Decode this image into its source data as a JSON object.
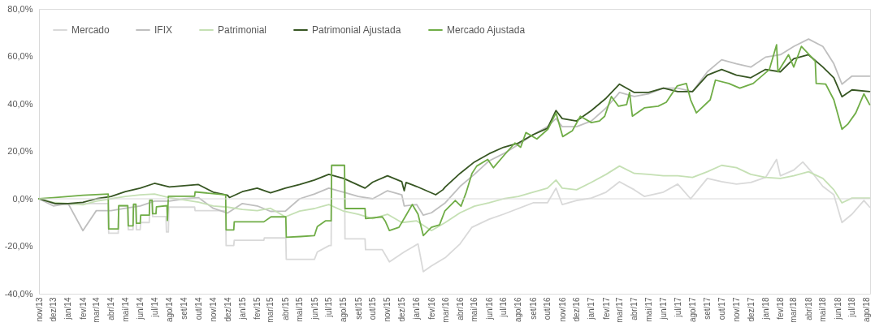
{
  "chart_data": {
    "type": "line",
    "legend": "top left",
    "marker": "none",
    "line_style": "solid",
    "grid": false,
    "xlim": [
      "2013-11-01",
      "2018-08-08"
    ],
    "xticks": [
      {
        "value": "2013-11-01",
        "label": "nov/13"
      },
      {
        "value": "2013-12-01",
        "label": "dez/13"
      },
      {
        "value": "2014-01-01",
        "label": "jan/14"
      },
      {
        "value": "2014-02-01",
        "label": "fev/14"
      },
      {
        "value": "2014-03-01",
        "label": "mar/14"
      },
      {
        "value": "2014-04-01",
        "label": "abr/14"
      },
      {
        "value": "2014-05-01",
        "label": "mai/14"
      },
      {
        "value": "2014-06-01",
        "label": "jun/14"
      },
      {
        "value": "2014-07-01",
        "label": "jul/14"
      },
      {
        "value": "2014-08-01",
        "label": "ago/14"
      },
      {
        "value": "2014-09-01",
        "label": "set/14"
      },
      {
        "value": "2014-10-01",
        "label": "out/14"
      },
      {
        "value": "2014-11-01",
        "label": "nov/14"
      },
      {
        "value": "2014-12-01",
        "label": "dez/14"
      },
      {
        "value": "2015-01-01",
        "label": "jan/15"
      },
      {
        "value": "2015-02-01",
        "label": "fev/15"
      },
      {
        "value": "2015-03-01",
        "label": "mar/15"
      },
      {
        "value": "2015-04-01",
        "label": "abr/15"
      },
      {
        "value": "2015-05-01",
        "label": "mai/15"
      },
      {
        "value": "2015-06-01",
        "label": "jun/15"
      },
      {
        "value": "2015-07-01",
        "label": "jul/15"
      },
      {
        "value": "2015-08-01",
        "label": "ago/15"
      },
      {
        "value": "2015-09-01",
        "label": "set/15"
      },
      {
        "value": "2015-10-01",
        "label": "out/15"
      },
      {
        "value": "2015-11-01",
        "label": "nov/15"
      },
      {
        "value": "2015-12-01",
        "label": "dez/15"
      },
      {
        "value": "2016-01-01",
        "label": "jan/16"
      },
      {
        "value": "2016-02-01",
        "label": "fev/16"
      },
      {
        "value": "2016-03-01",
        "label": "mar/16"
      },
      {
        "value": "2016-04-01",
        "label": "abr/16"
      },
      {
        "value": "2016-05-01",
        "label": "mai/16"
      },
      {
        "value": "2016-06-01",
        "label": "jun/16"
      },
      {
        "value": "2016-07-01",
        "label": "jul/16"
      },
      {
        "value": "2016-08-01",
        "label": "ago/16"
      },
      {
        "value": "2016-09-01",
        "label": "set/16"
      },
      {
        "value": "2016-10-01",
        "label": "out/16"
      },
      {
        "value": "2016-11-01",
        "label": "nov/16"
      },
      {
        "value": "2016-12-01",
        "label": "dez/16"
      },
      {
        "value": "2017-01-01",
        "label": "jan/17"
      },
      {
        "value": "2017-02-01",
        "label": "fev/17"
      },
      {
        "value": "2017-03-01",
        "label": "mar/17"
      },
      {
        "value": "2017-04-01",
        "label": "abr/17"
      },
      {
        "value": "2017-05-01",
        "label": "mai/17"
      },
      {
        "value": "2017-06-01",
        "label": "jun/17"
      },
      {
        "value": "2017-07-01",
        "label": "jul/17"
      },
      {
        "value": "2017-08-01",
        "label": "ago/17"
      },
      {
        "value": "2017-09-01",
        "label": "set/17"
      },
      {
        "value": "2017-10-01",
        "label": "out/17"
      },
      {
        "value": "2017-11-01",
        "label": "nov/17"
      },
      {
        "value": "2017-12-01",
        "label": "dez/17"
      },
      {
        "value": "2018-01-01",
        "label": "jan/18"
      },
      {
        "value": "2018-02-01",
        "label": "fev/18"
      },
      {
        "value": "2018-03-01",
        "label": "mar/18"
      },
      {
        "value": "2018-04-01",
        "label": "abr/18"
      },
      {
        "value": "2018-05-01",
        "label": "mai/18"
      },
      {
        "value": "2018-06-01",
        "label": "jun/18"
      },
      {
        "value": "2018-07-01",
        "label": "jul/18"
      },
      {
        "value": "2018-08-01",
        "label": "ago/18"
      }
    ],
    "ylim": [
      -40,
      80
    ],
    "yticks": [
      {
        "value": -40,
        "label": "-40,0%"
      },
      {
        "value": -20,
        "label": "-20,0%"
      },
      {
        "value": 0,
        "label": "0,0%"
      },
      {
        "value": 20,
        "label": "20,0%"
      },
      {
        "value": 40,
        "label": "40,0%"
      },
      {
        "value": 60,
        "label": "60,0%"
      },
      {
        "value": 80,
        "label": "80,0%"
      }
    ],
    "ref_lines": [
      {
        "axis": "y",
        "value": 0,
        "color": "#d9d9d9"
      }
    ],
    "series": [
      {
        "name": "Mercado",
        "color": "#d9d9d9",
        "x": [
          "2013-11-01",
          "2013-12-01",
          "2014-01-01",
          "2014-02-01",
          "2014-03-01",
          "2014-03-26",
          "2014-03-27",
          "2014-04-16",
          "2014-04-17",
          "2014-05-06",
          "2014-05-07",
          "2014-05-17",
          "2014-05-18",
          "2014-05-23",
          "2014-05-24",
          "2014-06-01",
          "2014-06-02",
          "2014-06-20",
          "2014-06-21",
          "2014-06-26",
          "2014-06-27",
          "2014-07-25",
          "2014-07-26",
          "2014-07-30",
          "2014-07-31",
          "2014-09-23",
          "2014-09-24",
          "2014-11-27",
          "2014-11-28",
          "2014-12-14",
          "2014-12-15",
          "2015-02-15",
          "2015-02-16",
          "2015-04-02",
          "2015-04-03",
          "2015-06-01",
          "2015-06-07",
          "2015-07-02",
          "2015-07-06",
          "2015-07-07",
          "2015-08-03",
          "2015-08-04",
          "2015-09-15",
          "2015-09-16",
          "2015-10-21",
          "2015-11-05",
          "2015-12-06",
          "2016-01-04",
          "2016-01-15",
          "2016-02-01",
          "2016-03-01",
          "2016-04-01",
          "2016-04-26",
          "2016-06-01",
          "2016-07-01",
          "2016-08-01",
          "2016-09-01",
          "2016-10-01",
          "2016-10-19",
          "2016-11-01",
          "2016-12-01",
          "2017-01-01",
          "2017-02-01",
          "2017-03-01",
          "2017-04-01",
          "2017-04-22",
          "2017-06-01",
          "2017-07-01",
          "2017-07-28",
          "2017-09-01",
          "2017-10-01",
          "2017-11-01",
          "2017-12-01",
          "2018-01-01",
          "2018-01-24",
          "2018-02-01",
          "2018-03-01",
          "2018-03-20",
          "2018-04-10",
          "2018-05-01",
          "2018-05-24",
          "2018-06-10",
          "2018-07-01",
          "2018-07-26",
          "2018-08-07"
        ],
        "values": [
          0,
          -2,
          -2.5,
          -2,
          -2,
          -2,
          -14.5,
          -14.5,
          -3,
          -3,
          -13,
          -13,
          -3,
          -3,
          -13,
          -13,
          -10,
          -10,
          -1,
          -1,
          -7.5,
          -7.5,
          -14,
          -14,
          -3.5,
          -3.5,
          -5,
          -5,
          -19.7,
          -19.7,
          -17.5,
          -17.5,
          -16.5,
          -16.5,
          -25.5,
          -25.5,
          -22.4,
          -19.7,
          -19.7,
          14.1,
          14.1,
          -16.9,
          -16.9,
          -21.4,
          -21.4,
          -26.6,
          -22.4,
          -19,
          -30.7,
          -28.3,
          -24.8,
          -19,
          -12,
          -8.6,
          -6.5,
          -4.1,
          -1.7,
          -1.7,
          4.5,
          -2.4,
          -0.7,
          0.3,
          2.8,
          7.2,
          3.8,
          1,
          2.8,
          6.2,
          0,
          8.6,
          7.2,
          6.2,
          6.9,
          9,
          16.6,
          9.7,
          12.1,
          15.5,
          10.7,
          5.2,
          1.7,
          -10,
          -6.5,
          -0.7,
          -3.5
        ]
      },
      {
        "name": "IFIX",
        "color": "#bfbfbf",
        "x": [
          "2013-11-01",
          "2013-12-01",
          "2014-01-01",
          "2014-02-01",
          "2014-03-01",
          "2014-04-01",
          "2014-05-01",
          "2014-06-01",
          "2014-07-01",
          "2014-08-01",
          "2014-09-01",
          "2014-10-01",
          "2014-11-01",
          "2014-12-01",
          "2015-01-01",
          "2015-02-01",
          "2015-03-01",
          "2015-04-01",
          "2015-05-01",
          "2015-06-01",
          "2015-07-01",
          "2015-08-01",
          "2015-09-01",
          "2015-10-01",
          "2015-11-01",
          "2015-12-01",
          "2015-12-06",
          "2016-01-01",
          "2016-01-15",
          "2016-02-01",
          "2016-03-01",
          "2016-04-01",
          "2016-05-01",
          "2016-06-01",
          "2016-07-01",
          "2016-08-01",
          "2016-09-01",
          "2016-10-01",
          "2016-10-19",
          "2016-11-01",
          "2016-12-01",
          "2017-01-01",
          "2017-02-01",
          "2017-03-01",
          "2017-04-01",
          "2017-05-01",
          "2017-06-01",
          "2017-07-01",
          "2017-08-01",
          "2017-09-01",
          "2017-10-01",
          "2017-11-01",
          "2017-12-01",
          "2018-01-01",
          "2018-02-01",
          "2018-03-01",
          "2018-04-01",
          "2018-05-01",
          "2018-05-24",
          "2018-06-10",
          "2018-07-01",
          "2018-08-07"
        ],
        "values": [
          0,
          -3,
          -2,
          -13.4,
          -5,
          -5,
          -4,
          -3,
          -1,
          -1,
          0,
          0.5,
          -4,
          -6,
          -2,
          -3,
          -5.3,
          -5.2,
          0,
          2,
          4.5,
          2.8,
          1,
          0,
          3.4,
          1.7,
          -3,
          -2.4,
          -6.9,
          -5.9,
          -1.7,
          5.2,
          10.3,
          16,
          19,
          22.8,
          27,
          30.4,
          33.8,
          30.4,
          30.4,
          32.8,
          38.3,
          44.8,
          43.1,
          44.2,
          46.6,
          46.6,
          45.2,
          53.5,
          58.6,
          56.9,
          55.5,
          59.7,
          60.7,
          64.2,
          67.3,
          64.2,
          56.9,
          48.3,
          51.7,
          51.7
        ]
      },
      {
        "name": "Patrimonial",
        "color": "#c5e0b4",
        "x": [
          "2013-11-01",
          "2013-12-01",
          "2014-01-01",
          "2014-02-01",
          "2014-03-01",
          "2014-04-01",
          "2014-05-01",
          "2014-06-01",
          "2014-07-01",
          "2014-08-01",
          "2014-09-01",
          "2014-10-01",
          "2014-11-01",
          "2014-12-01",
          "2015-01-01",
          "2015-02-01",
          "2015-03-01",
          "2015-04-01",
          "2015-05-01",
          "2015-06-01",
          "2015-07-01",
          "2015-08-01",
          "2015-09-01",
          "2015-10-01",
          "2015-11-01",
          "2015-12-01",
          "2016-01-01",
          "2016-02-01",
          "2016-03-01",
          "2016-04-01",
          "2016-05-01",
          "2016-06-01",
          "2016-07-01",
          "2016-08-01",
          "2016-09-01",
          "2016-10-01",
          "2016-10-19",
          "2016-11-01",
          "2016-12-01",
          "2017-01-01",
          "2017-02-01",
          "2017-03-01",
          "2017-04-01",
          "2017-05-01",
          "2017-06-01",
          "2017-07-01",
          "2017-08-01",
          "2017-09-01",
          "2017-10-01",
          "2017-11-01",
          "2017-12-01",
          "2018-01-01",
          "2018-02-01",
          "2018-03-01",
          "2018-04-01",
          "2018-05-01",
          "2018-05-24",
          "2018-06-10",
          "2018-07-01",
          "2018-08-07"
        ],
        "values": [
          0,
          -1.5,
          -2,
          -2.5,
          -1,
          0,
          1,
          1.7,
          2,
          0.5,
          -0.5,
          -1.4,
          -3,
          -3.5,
          -4.5,
          -5,
          -4,
          -7.6,
          -5.2,
          -4.1,
          -2.4,
          -5.2,
          -6.5,
          -8.3,
          -6.5,
          -10,
          -9.3,
          -13.4,
          -10,
          -5.9,
          -3.1,
          -1.7,
          0,
          1,
          2.8,
          4.5,
          7.9,
          4.5,
          3.8,
          6.9,
          10.3,
          13.8,
          10.7,
          10.3,
          9.7,
          9.7,
          9,
          11.4,
          14.1,
          13.1,
          10.3,
          9,
          8.6,
          9.7,
          11.4,
          8.6,
          3.8,
          -1.7,
          0.3,
          0.3
        ]
      },
      {
        "name": "Patrimonial Ajustada",
        "color": "#375623",
        "x": [
          "2013-11-01",
          "2013-12-05",
          "2014-01-01",
          "2014-02-01",
          "2014-03-01",
          "2014-04-01",
          "2014-05-01",
          "2014-06-01",
          "2014-07-01",
          "2014-08-01",
          "2014-09-01",
          "2014-10-01",
          "2014-11-01",
          "2014-12-01",
          "2014-12-05",
          "2015-01-01",
          "2015-02-01",
          "2015-03-01",
          "2015-04-01",
          "2015-05-01",
          "2015-06-01",
          "2015-07-01",
          "2015-08-01",
          "2015-09-15",
          "2015-10-01",
          "2015-11-01",
          "2015-12-01",
          "2015-12-06",
          "2015-12-10",
          "2016-01-01",
          "2016-02-10",
          "2016-02-25",
          "2016-03-01",
          "2016-04-01",
          "2016-05-01",
          "2016-06-01",
          "2016-07-01",
          "2016-08-01",
          "2016-09-01",
          "2016-10-01",
          "2016-10-19",
          "2016-11-01",
          "2016-12-01",
          "2017-01-01",
          "2017-02-01",
          "2017-03-01",
          "2017-04-01",
          "2017-05-01",
          "2017-06-01",
          "2017-07-01",
          "2017-08-01",
          "2017-09-01",
          "2017-10-01",
          "2017-11-01",
          "2017-12-01",
          "2018-01-01",
          "2018-02-01",
          "2018-03-01",
          "2018-04-01",
          "2018-05-01",
          "2018-05-24",
          "2018-06-10",
          "2018-07-01",
          "2018-08-07"
        ],
        "values": [
          0,
          -2,
          -2,
          -1.5,
          0,
          1,
          3,
          4.5,
          6.5,
          5,
          5.5,
          6,
          2.8,
          1.5,
          0.5,
          3,
          4.5,
          2.5,
          4.5,
          6,
          7.9,
          10.3,
          8.6,
          4.5,
          7,
          9.7,
          7.2,
          3.4,
          6.9,
          5.2,
          1.7,
          3.8,
          5,
          10.7,
          15.5,
          19,
          21.7,
          23.5,
          27,
          29.7,
          37.2,
          33.8,
          32.8,
          37.2,
          42.4,
          48.3,
          44.8,
          44.8,
          46.6,
          45.2,
          45.2,
          52.1,
          54.5,
          52.1,
          51,
          54.5,
          53.5,
          59,
          60.7,
          55.5,
          51,
          43,
          45.9,
          45.2
        ]
      },
      {
        "name": "Mercado Ajustada",
        "color": "#70ad47",
        "x": [
          "2013-11-01",
          "2013-12-01",
          "2014-01-01",
          "2014-02-01",
          "2014-03-26",
          "2014-03-27",
          "2014-04-16",
          "2014-04-17",
          "2014-05-06",
          "2014-05-07",
          "2014-05-17",
          "2014-05-18",
          "2014-05-23",
          "2014-05-24",
          "2014-06-01",
          "2014-06-02",
          "2014-06-20",
          "2014-06-21",
          "2014-06-26",
          "2014-06-27",
          "2014-07-04",
          "2014-07-05",
          "2014-07-27",
          "2014-07-28",
          "2014-07-30",
          "2014-09-23",
          "2014-09-24",
          "2014-11-27",
          "2014-11-28",
          "2014-12-14",
          "2014-12-15",
          "2015-02-15",
          "2015-03-02",
          "2015-04-02",
          "2015-04-03",
          "2015-05-03",
          "2015-06-01",
          "2015-06-07",
          "2015-06-24",
          "2015-07-06",
          "2015-07-07",
          "2015-08-03",
          "2015-08-04",
          "2015-09-15",
          "2015-09-16",
          "2015-10-21",
          "2015-10-27",
          "2015-11-05",
          "2015-11-25",
          "2015-12-06",
          "2015-12-23",
          "2016-01-04",
          "2016-01-15",
          "2016-02-01",
          "2016-02-18",
          "2016-02-29",
          "2016-03-22",
          "2016-04-03",
          "2016-04-14",
          "2016-04-26",
          "2016-05-06",
          "2016-05-29",
          "2016-06-10",
          "2016-07-02",
          "2016-07-25",
          "2016-08-06",
          "2016-08-17",
          "2016-09-09",
          "2016-10-02",
          "2016-10-19",
          "2016-11-02",
          "2016-11-22",
          "2016-12-09",
          "2017-01-01",
          "2017-01-18",
          "2017-01-29",
          "2017-02-12",
          "2017-02-27",
          "2017-03-16",
          "2017-03-22",
          "2017-03-28",
          "2017-04-22",
          "2017-05-21",
          "2017-06-07",
          "2017-06-30",
          "2017-07-19",
          "2017-07-28",
          "2017-08-09",
          "2017-09-07",
          "2017-09-18",
          "2017-10-16",
          "2017-11-08",
          "2017-12-06",
          "2018-01-09",
          "2018-01-24",
          "2018-01-27",
          "2018-02-18",
          "2018-03-01",
          "2018-03-17",
          "2018-04-15",
          "2018-04-17",
          "2018-05-07",
          "2018-05-24",
          "2018-06-10",
          "2018-06-22",
          "2018-07-09",
          "2018-07-26",
          "2018-08-07"
        ],
        "values": [
          0,
          0.5,
          1,
          1.5,
          2,
          -12.7,
          -12.7,
          -2.9,
          -2.9,
          -11.4,
          -11.4,
          -2.3,
          -2.3,
          -10.3,
          -10.3,
          -6.9,
          -6.9,
          -0.6,
          -0.6,
          -6.3,
          -6.3,
          -3.4,
          -2.9,
          -9.1,
          1.1,
          1.1,
          2.9,
          1.7,
          -13.1,
          -13.1,
          -9.7,
          -9.7,
          -7.6,
          -7.6,
          -16.2,
          -15.9,
          -15.5,
          -11.7,
          -9.3,
          -9.3,
          14.1,
          14.1,
          -4.1,
          -4.1,
          -8.3,
          -7.6,
          -9.3,
          -13.4,
          -12,
          -8.3,
          -2.4,
          -6.5,
          -15.5,
          -12,
          -11,
          -5.2,
          -0.7,
          -3.1,
          2.8,
          10.7,
          13.8,
          16.6,
          13.1,
          18.3,
          23.5,
          21.7,
          27.9,
          25.2,
          29.3,
          36.2,
          26.2,
          28.6,
          34.8,
          32.1,
          32.8,
          34.8,
          43.1,
          39,
          39.7,
          44.8,
          34.8,
          38.3,
          39,
          40.7,
          47.6,
          48.6,
          41.7,
          36.2,
          41.7,
          50,
          48.6,
          46.6,
          48.6,
          54.5,
          64.9,
          53.5,
          60.7,
          55.5,
          64.2,
          58,
          48.6,
          48.3,
          41.7,
          29.3,
          31.4,
          36.2,
          44.2,
          39.7
        ]
      }
    ]
  }
}
